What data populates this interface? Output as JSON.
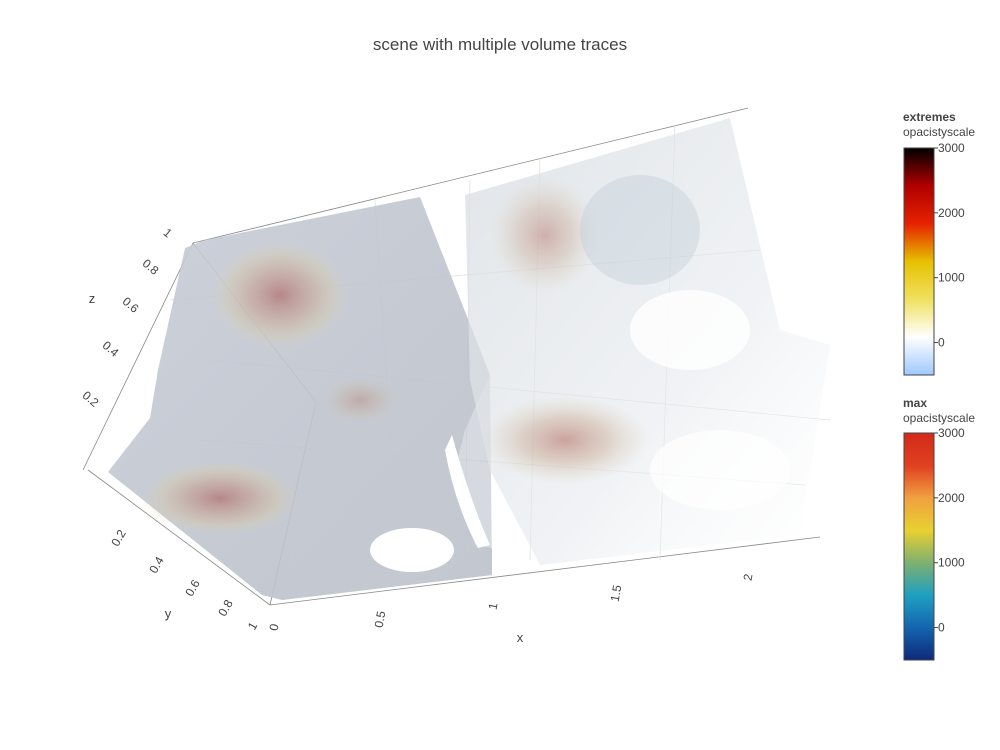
{
  "chart_data": {
    "type": "volume",
    "title": "scene with multiple volume traces",
    "scene": {
      "x_axis": {
        "title": "x",
        "range": [
          0,
          2.3
        ],
        "ticks": [
          "0",
          "0.5",
          "1",
          "1.5",
          "2"
        ]
      },
      "y_axis": {
        "title": "y",
        "range": [
          0,
          1
        ],
        "ticks": [
          "0.2",
          "0.4",
          "0.6",
          "0.8",
          "1"
        ]
      },
      "z_axis": {
        "title": "z",
        "range": [
          0,
          1
        ],
        "ticks": [
          "0.2",
          "0.4",
          "0.6",
          "0.8",
          "1"
        ]
      },
      "grid": true
    },
    "series": [
      {
        "name": "extremes",
        "x_range": [
          0,
          1
        ],
        "y_range": [
          0,
          1
        ],
        "z_range": [
          0,
          1
        ],
        "colorbar": {
          "title": "extremes",
          "subtitle": "opacistyscale",
          "range": [
            -500,
            3000
          ],
          "ticks": [
            "3000",
            "2000",
            "1000",
            "0"
          ],
          "colors": [
            "#9ec8ff",
            "#ffffff",
            "#f0e060",
            "#e6c000",
            "#e62200",
            "#b00000",
            "#000000"
          ]
        }
      },
      {
        "name": "max",
        "x_range": [
          1,
          2.3
        ],
        "y_range": [
          0,
          1
        ],
        "z_range": [
          0,
          1
        ],
        "colorbar": {
          "title": "max",
          "subtitle": "opacistyscale",
          "range": [
            -500,
            3000
          ],
          "ticks": [
            "3000",
            "2000",
            "1000",
            "0"
          ],
          "colors": [
            "#0d2a7a",
            "#1565b0",
            "#1ea0c0",
            "#7fb070",
            "#e8d030",
            "#f0a040",
            "#e04020",
            "#d42a1a"
          ]
        }
      }
    ],
    "legend": "right"
  }
}
